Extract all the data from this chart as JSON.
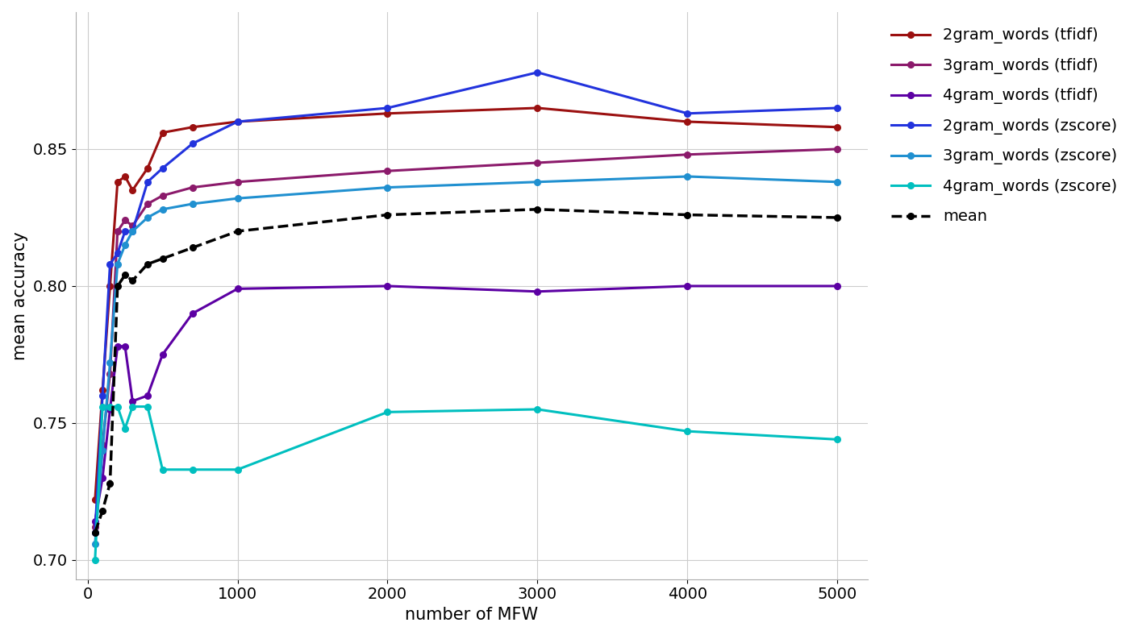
{
  "x": [
    50,
    100,
    150,
    200,
    250,
    300,
    400,
    500,
    700,
    1000,
    2000,
    3000,
    4000,
    5000
  ],
  "series": {
    "2gram_words (tfidf)": {
      "color": "#9B1010",
      "values": [
        0.722,
        0.762,
        0.8,
        0.838,
        0.84,
        0.835,
        0.843,
        0.856,
        0.858,
        0.86,
        0.863,
        0.865,
        0.86,
        0.858
      ]
    },
    "3gram_words (tfidf)": {
      "color": "#8B1A6B",
      "values": [
        0.712,
        0.742,
        0.768,
        0.82,
        0.824,
        0.822,
        0.83,
        0.833,
        0.836,
        0.838,
        0.842,
        0.845,
        0.848,
        0.85
      ]
    },
    "4gram_words (tfidf)": {
      "color": "#5C00A3",
      "values": [
        0.714,
        0.73,
        0.755,
        0.778,
        0.778,
        0.758,
        0.76,
        0.775,
        0.79,
        0.799,
        0.8,
        0.798,
        0.8,
        0.8
      ]
    },
    "2gram_words (zscore)": {
      "color": "#2233DD",
      "values": [
        0.71,
        0.76,
        0.808,
        0.812,
        0.82,
        0.82,
        0.838,
        0.843,
        0.852,
        0.86,
        0.865,
        0.878,
        0.863,
        0.865
      ]
    },
    "3gram_words (zscore)": {
      "color": "#2090D0",
      "values": [
        0.706,
        0.74,
        0.772,
        0.808,
        0.815,
        0.82,
        0.825,
        0.828,
        0.83,
        0.832,
        0.836,
        0.838,
        0.84,
        0.838
      ]
    },
    "4gram_words (zscore)": {
      "color": "#00BFBF",
      "values": [
        0.7,
        0.756,
        0.756,
        0.756,
        0.748,
        0.756,
        0.756,
        0.733,
        0.733,
        0.733,
        0.754,
        0.755,
        0.747,
        0.744
      ]
    },
    "mean": {
      "color": "#000000",
      "values": [
        0.71,
        0.718,
        0.728,
        0.8,
        0.804,
        0.802,
        0.808,
        0.81,
        0.814,
        0.82,
        0.826,
        0.828,
        0.826,
        0.825
      ]
    }
  },
  "xlabel": "number of MFW",
  "ylabel": "mean accuracy",
  "xlim": [
    -80,
    5200
  ],
  "ylim": [
    0.693,
    0.9
  ],
  "yticks": [
    0.7,
    0.75,
    0.8,
    0.85
  ],
  "xticks": [
    0,
    1000,
    2000,
    3000,
    4000,
    5000
  ],
  "figsize": [
    14.11,
    7.88
  ],
  "dpi": 100,
  "background_color": "#ffffff",
  "grid_color": "#cccccc",
  "label_fontsize": 15,
  "tick_fontsize": 14,
  "legend_fontsize": 14
}
